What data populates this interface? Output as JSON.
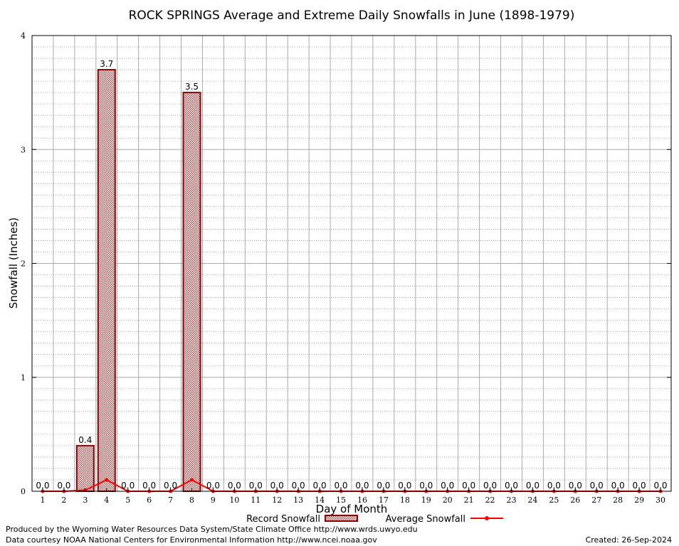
{
  "chart_data": {
    "type": "bar",
    "title": "ROCK SPRINGS Average and Extreme Daily Snowfalls in June (1898-1979)",
    "xlabel": "Day of Month",
    "ylabel": "Snowfall (Inches)",
    "ylim": [
      0,
      4
    ],
    "yticks": [
      "0",
      "1",
      "2",
      "3",
      "4"
    ],
    "categories": [
      "1",
      "2",
      "3",
      "4",
      "5",
      "6",
      "7",
      "8",
      "9",
      "10",
      "11",
      "12",
      "13",
      "14",
      "15",
      "16",
      "17",
      "18",
      "19",
      "20",
      "21",
      "22",
      "23",
      "24",
      "25",
      "26",
      "27",
      "28",
      "29",
      "30"
    ],
    "series": [
      {
        "name": "Record Snowfall",
        "type": "bar",
        "values": [
          0,
          0,
          0.4,
          3.7,
          0,
          0,
          0,
          3.5,
          0,
          0,
          0,
          0,
          0,
          0,
          0,
          0,
          0,
          0,
          0,
          0,
          0,
          0,
          0,
          0,
          0,
          0,
          0,
          0,
          0,
          0
        ],
        "labels": [
          "0.0",
          "0.0",
          "0.4",
          "3.7",
          "0.0",
          "0.0",
          "0.0",
          "3.5",
          "0.0",
          "0.0",
          "0.0",
          "0.0",
          "0.0",
          "0.0",
          "0.0",
          "0.0",
          "0.0",
          "0.0",
          "0.0",
          "0.0",
          "0.0",
          "0.0",
          "0.0",
          "0.0",
          "0.0",
          "0.0",
          "0.0",
          "0.0",
          "0.0",
          "0.0"
        ]
      },
      {
        "name": "Average Snowfall",
        "type": "line",
        "values": [
          0,
          0,
          0.01,
          0.1,
          0,
          0,
          0,
          0.1,
          0,
          0,
          0,
          0,
          0,
          0,
          0,
          0,
          0,
          0,
          0,
          0,
          0,
          0,
          0,
          0,
          0,
          0,
          0,
          0,
          0,
          0
        ]
      }
    ],
    "grid": true,
    "legend": "bottom-center",
    "colors": {
      "bar_fill": "#c9a0a0",
      "bar_stroke": "#8b0000",
      "line": "#ff0000",
      "grid": "#aaaaaa"
    }
  },
  "footer": {
    "line1": "Produced by the Wyoming Water Resources Data System/State Climate Office http://www.wrds.uwyo.edu",
    "line2": "Data courtesy NOAA National Centers for Environmental Information http://www.ncei.noaa.gov",
    "created": "Created:  26-Sep-2024"
  }
}
